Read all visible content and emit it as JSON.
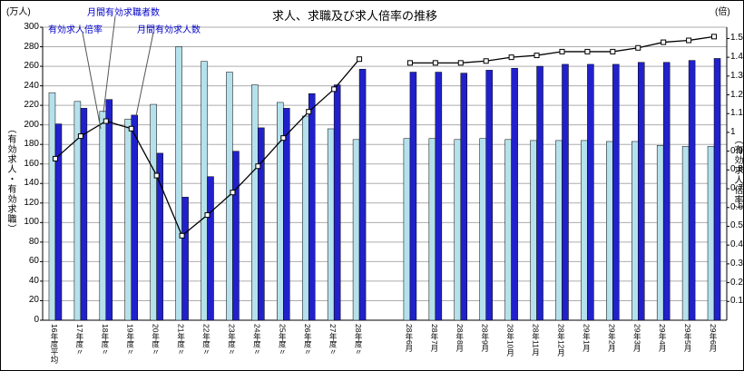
{
  "title": "求人、求職及び求人倍率の推移",
  "left_axis": {
    "unit": "(万人)",
    "label": "（有効求人・有効求職）",
    "ticks": [
      "300",
      "280",
      "260",
      "240",
      "220",
      "200",
      "180",
      "160",
      "140",
      "120",
      "100",
      "80",
      "60",
      "40",
      "20",
      "0"
    ]
  },
  "right_axis": {
    "unit": "(倍)",
    "label": "（有効求人倍率）",
    "ticks": [
      "1.5",
      "1.4",
      "1.3",
      "1.2",
      "1.1",
      "1",
      "0.9",
      "0.8",
      "0.7",
      "0.6",
      "0.5",
      "0.4",
      "0.3",
      "0.2",
      "0.1"
    ]
  },
  "colors": {
    "seekers_bar": "#B5E1EC",
    "offers_bar": "#2121CC",
    "bar_outline": "#000000",
    "ratio_line": "#000000",
    "marker_fill": "#FFFFFF",
    "gridline": "#ADADAD",
    "annotation_text": "#0000CC"
  },
  "chart_data": {
    "type": "bar",
    "note": "paired bars (left axis, 万人) with overlaid line (right axis, 倍); yearly averages then monthly values",
    "legend": {
      "seekers": "月間有効求職者数",
      "offers": "月間有効求人数",
      "ratio": "有効求人倍率"
    },
    "left_ylim": [
      0,
      300
    ],
    "right_ylim": [
      0,
      1.56
    ],
    "grid": true,
    "sections": [
      {
        "name": "yearly",
        "categories": [
          "16年度平均",
          "17年度〃",
          "18年度〃",
          "19年度〃",
          "20年度〃",
          "21年度〃",
          "22年度〃",
          "23年度〃",
          "24年度〃",
          "25年度〃",
          "26年度〃",
          "27年度〃",
          "28年度〃"
        ],
        "series": {
          "seekers": [
            233,
            224,
            214,
            206,
            221,
            280,
            265,
            254,
            241,
            223,
            209,
            196,
            185
          ],
          "offers": [
            201,
            217,
            226,
            210,
            171,
            126,
            147,
            173,
            197,
            217,
            232,
            241,
            257
          ],
          "ratio": [
            0.86,
            0.98,
            1.06,
            1.02,
            0.77,
            0.45,
            0.56,
            0.68,
            0.82,
            0.97,
            1.11,
            1.23,
            1.39
          ]
        }
      },
      {
        "name": "monthly",
        "categories": [
          "28年6月",
          "28年7月",
          "28年8月",
          "28年9月",
          "28年10月",
          "28年11月",
          "28年12月",
          "29年1月",
          "29年2月",
          "29年3月",
          "29年4月",
          "29年5月",
          "29年6月"
        ],
        "series": {
          "seekers": [
            186,
            186,
            185,
            186,
            185,
            184,
            184,
            184,
            183,
            183,
            179,
            178,
            178
          ],
          "offers": [
            254,
            254,
            253,
            256,
            258,
            260,
            262,
            262,
            262,
            264,
            264,
            266,
            268
          ],
          "ratio": [
            1.37,
            1.37,
            1.37,
            1.38,
            1.4,
            1.41,
            1.43,
            1.43,
            1.43,
            1.45,
            1.48,
            1.49,
            1.51
          ]
        }
      }
    ]
  }
}
